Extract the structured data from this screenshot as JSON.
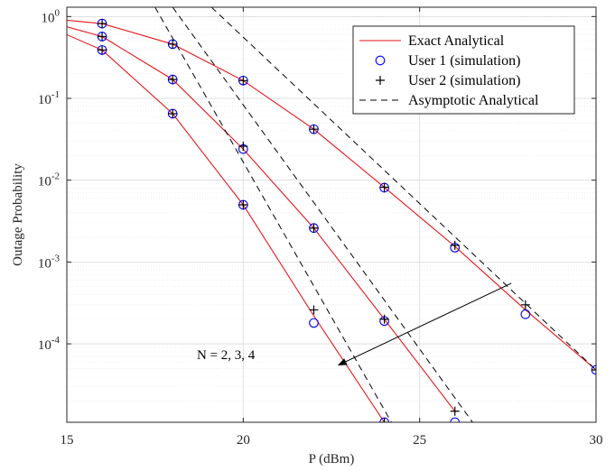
{
  "chart_data": {
    "type": "line",
    "xlabel": "P (dBm)",
    "ylabel": "Outage Probability",
    "xlim": [
      15,
      30
    ],
    "ylim": [
      1.1e-05,
      1.3
    ],
    "yscale": "log",
    "grid": true,
    "legend_position": "top-right",
    "x_ticks": [
      {
        "value": 15,
        "label": "15"
      },
      {
        "value": 20,
        "label": "20"
      },
      {
        "value": 25,
        "label": "25"
      },
      {
        "value": 30,
        "label": "30"
      }
    ],
    "y_ticks": [
      {
        "value": 1,
        "mantissa": "10",
        "exp": "0"
      },
      {
        "value": 0.1,
        "mantissa": "10",
        "exp": "-1"
      },
      {
        "value": 0.01,
        "mantissa": "10",
        "exp": "-2"
      },
      {
        "value": 0.001,
        "mantissa": "10",
        "exp": "-3"
      },
      {
        "value": 0.0001,
        "mantissa": "10",
        "exp": "-4"
      }
    ],
    "legend": [
      {
        "label": "Exact Analytical",
        "style": "red-line"
      },
      {
        "label": "User 1 (simulation)",
        "style": "blue-circle"
      },
      {
        "label": "User 2 (simulation)",
        "style": "black-plus"
      },
      {
        "label": "Asymptotic Analytical",
        "style": "black-dash"
      }
    ],
    "annotation": {
      "text": "N = 2, 3, 4",
      "arrow_from": [
        27.6,
        0.00055
      ],
      "arrow_to": [
        22.7,
        5.5e-05
      ]
    },
    "colors": {
      "exact": "#e8161b",
      "user1": "#0000ff",
      "user2": "#000000",
      "asymptotic": "#000000",
      "grid": "#d9d9d9"
    },
    "series": [
      {
        "kind": "exact",
        "group": "N=2",
        "x": [
          15,
          16,
          18,
          20,
          22,
          24,
          26,
          28,
          30
        ],
        "y": [
          0.9,
          0.82,
          0.46,
          0.165,
          0.042,
          0.0082,
          0.00155,
          0.00026,
          4.8e-05
        ]
      },
      {
        "kind": "exact",
        "group": "N=3",
        "x": [
          15,
          16,
          18,
          20,
          22,
          24,
          26
        ],
        "y": [
          0.75,
          0.57,
          0.17,
          0.024,
          0.0026,
          0.0002,
          1.5e-05
        ]
      },
      {
        "kind": "exact",
        "group": "N=4",
        "x": [
          15,
          16,
          18,
          20,
          22,
          24
        ],
        "y": [
          0.6,
          0.39,
          0.065,
          0.005,
          0.00022,
          1.1e-05
        ]
      },
      {
        "kind": "user1",
        "group": "N=2",
        "x": [
          16,
          18,
          20,
          22,
          24,
          26,
          28,
          30
        ],
        "y": [
          0.82,
          0.46,
          0.165,
          0.042,
          0.0081,
          0.0015,
          0.00023,
          4.8e-05
        ]
      },
      {
        "kind": "user1",
        "group": "N=3",
        "x": [
          16,
          18,
          20,
          22,
          24,
          26
        ],
        "y": [
          0.57,
          0.17,
          0.024,
          0.0026,
          0.00019,
          1.1e-05
        ]
      },
      {
        "kind": "user1",
        "group": "N=4",
        "x": [
          16,
          18,
          20,
          22,
          24
        ],
        "y": [
          0.39,
          0.065,
          0.005,
          0.00018,
          1.1e-05
        ]
      },
      {
        "kind": "user2",
        "group": "N=2",
        "x": [
          16,
          18,
          20,
          22,
          24,
          26,
          28,
          30
        ],
        "y": [
          0.82,
          0.46,
          0.165,
          0.042,
          0.0082,
          0.0016,
          0.0003,
          4.8e-05
        ]
      },
      {
        "kind": "user2",
        "group": "N=3",
        "x": [
          16,
          18,
          20,
          22,
          24,
          26
        ],
        "y": [
          0.57,
          0.17,
          0.026,
          0.0026,
          0.0002,
          1.5e-05
        ]
      },
      {
        "kind": "user2",
        "group": "N=4",
        "x": [
          16,
          18,
          20,
          22,
          24
        ],
        "y": [
          0.39,
          0.065,
          0.005,
          0.00026,
          1.1e-05
        ]
      },
      {
        "kind": "asymptotic",
        "group": "N=2",
        "x": [
          19.1,
          30
        ],
        "y": [
          1.3,
          4.8e-05
        ]
      },
      {
        "kind": "asymptotic",
        "group": "N=3",
        "x": [
          18.0,
          26.5
        ],
        "y": [
          1.3,
          1.1e-05
        ]
      },
      {
        "kind": "asymptotic",
        "group": "N=4",
        "x": [
          17.5,
          24.2
        ],
        "y": [
          1.3,
          1.1e-05
        ]
      }
    ]
  }
}
